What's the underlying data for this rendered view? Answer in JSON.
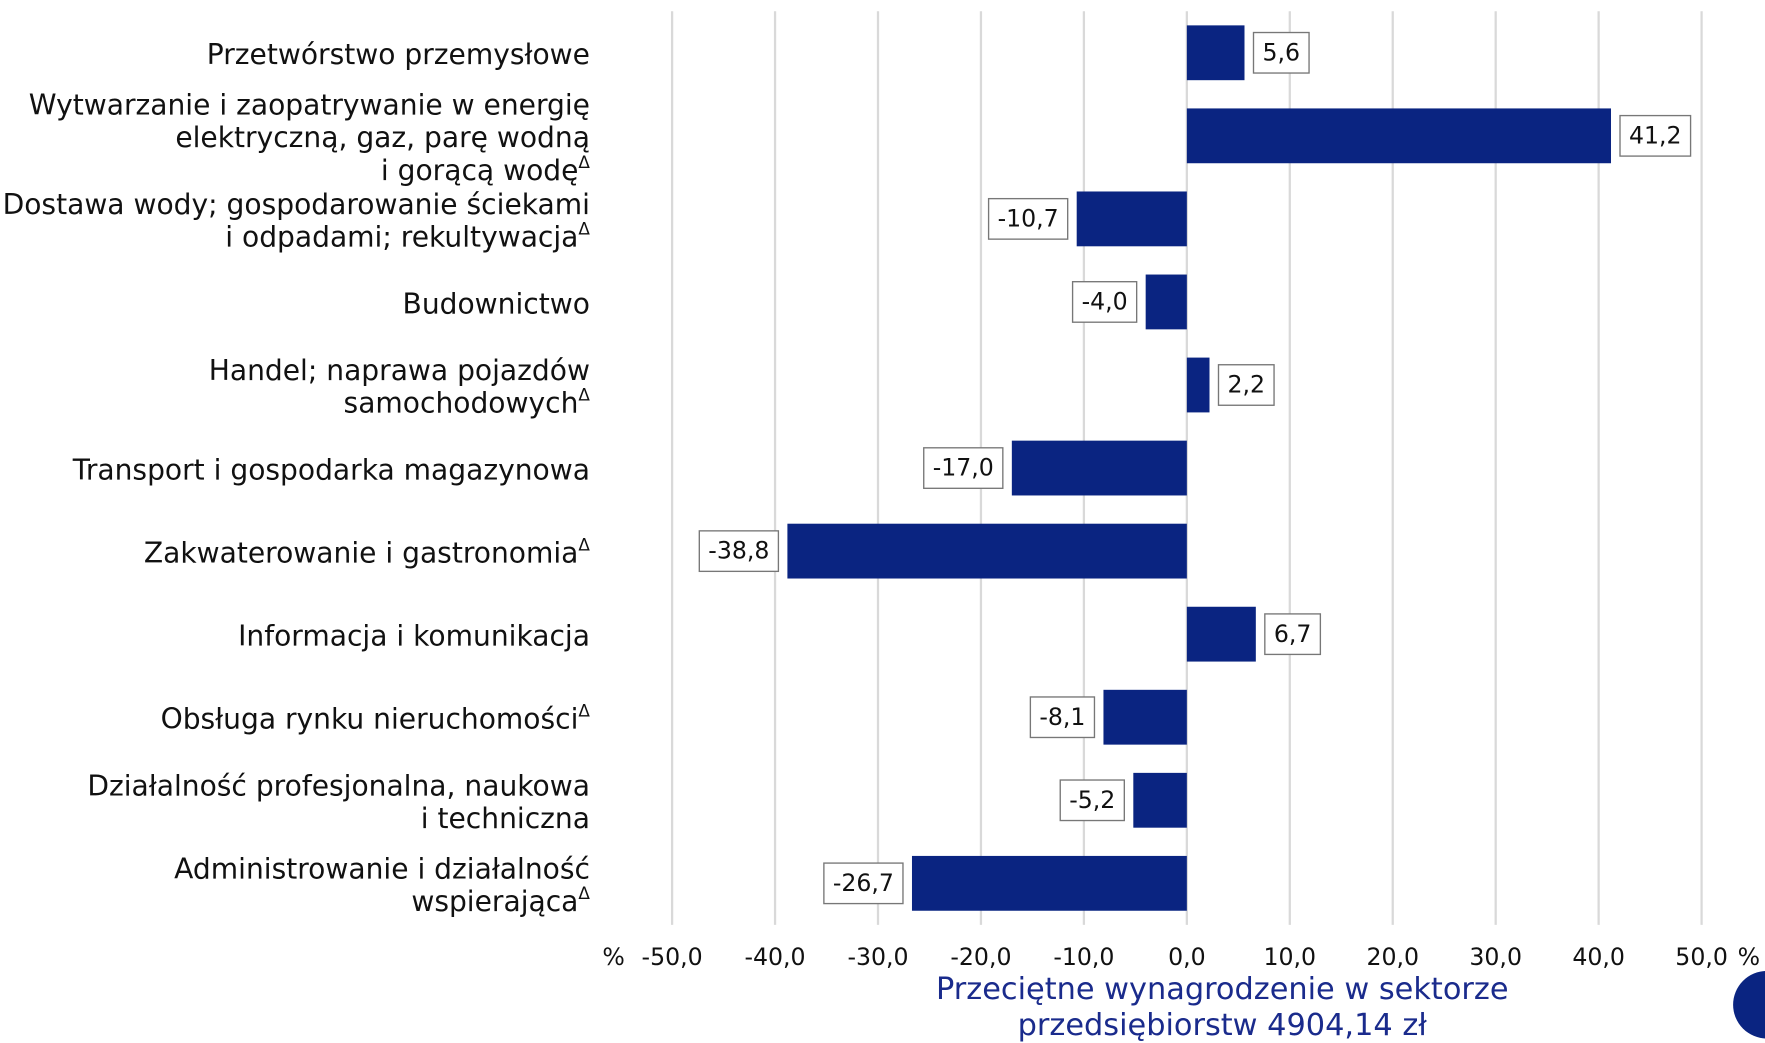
{
  "chart_data": {
    "type": "barh",
    "categories": [
      "Przetwórstwo przemysłowe",
      "Wytwarzanie i zaopatrywanie w energię\nelektryczną, gaz, parę wodną\ni gorącą wodęΔ",
      "Dostawa wody; gospodarowanie ściekami\ni odpadami; rekultywacjaΔ",
      "Budownictwo",
      "Handel; naprawa pojazdów\nsamochodowychΔ",
      "Transport i gospodarka magazynowa",
      "Zakwaterowanie i gastronomiaΔ",
      "Informacja i komunikacja",
      "Obsługa rynku nieruchomościΔ",
      "Działalność profesjonalna, naukowa\ni techniczna",
      "Administrowanie i działalność\nwspierającaΔ"
    ],
    "values": [
      5.6,
      41.2,
      -10.7,
      -4.0,
      2.2,
      -17.0,
      -38.8,
      6.7,
      -8.1,
      -5.2,
      -26.7
    ],
    "value_labels": [
      "5,6",
      "41,2",
      "-10,7",
      "-4,0",
      "2,2",
      "-17,0",
      "-38,8",
      "6,7",
      "-8,1",
      "-5,2",
      "-26,7"
    ],
    "color": "#0a2481",
    "xlim": [
      -50,
      50
    ],
    "xticks": [
      {
        "value": -50,
        "label": "-50,0"
      },
      {
        "value": -40,
        "label": "-40,0"
      },
      {
        "value": -30,
        "label": "-30,0"
      },
      {
        "value": -20,
        "label": "-20,0"
      },
      {
        "value": -10,
        "label": "-10,0"
      },
      {
        "value": 0,
        "label": "0,0"
      },
      {
        "value": 10,
        "label": "10,0"
      },
      {
        "value": 20,
        "label": "20,0"
      },
      {
        "value": 30,
        "label": "30,0"
      },
      {
        "value": 40,
        "label": "40,0"
      },
      {
        "value": 50,
        "label": "50,0"
      }
    ],
    "x_unit": "%",
    "xlabel": "Przeciętne wynagrodzenie w sektorze\nprzedsiębiorstw 4904,14 zł",
    "grid": true
  }
}
